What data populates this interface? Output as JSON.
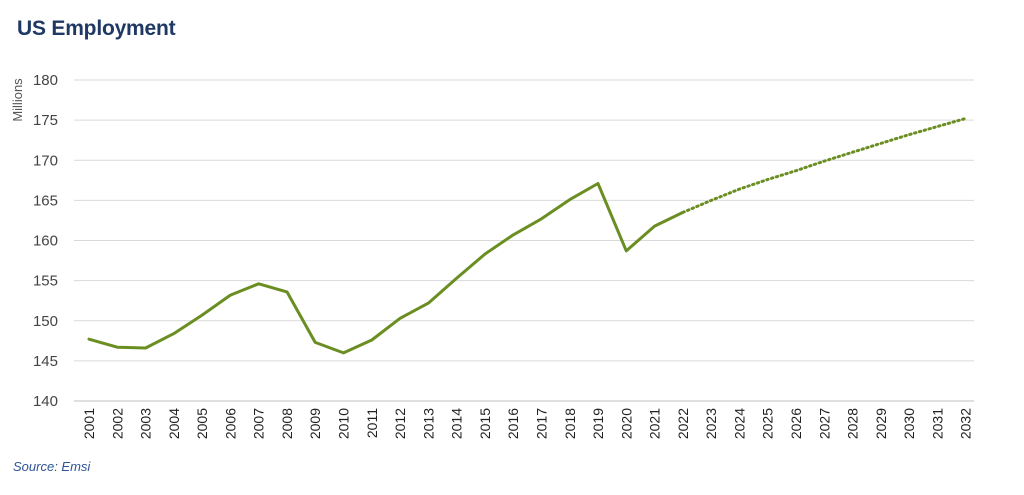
{
  "title": "US Employment",
  "source": "Source: Emsi",
  "chart_data": {
    "type": "line",
    "ylabel": "Millions",
    "xlabel": "",
    "ylim": [
      140,
      180
    ],
    "yticks": [
      140,
      145,
      150,
      155,
      160,
      165,
      170,
      175,
      180
    ],
    "grid": true,
    "x": [
      "2001",
      "2002",
      "2003",
      "2004",
      "2005",
      "2006",
      "2007",
      "2008",
      "2009",
      "2010",
      "2011",
      "2012",
      "2013",
      "2014",
      "2015",
      "2016",
      "2017",
      "2018",
      "2019",
      "2020",
      "2021",
      "2022",
      "2023",
      "2024",
      "2025",
      "2026",
      "2027",
      "2028",
      "2029",
      "2030",
      "2031",
      "2032"
    ],
    "series": [
      {
        "style": "solid",
        "color": "#6b8e23",
        "x": [
          "2001",
          "2002",
          "2003",
          "2004",
          "2005",
          "2006",
          "2007",
          "2008",
          "2009",
          "2010",
          "2011",
          "2012",
          "2013",
          "2014",
          "2015",
          "2016",
          "2017",
          "2018",
          "2019",
          "2020",
          "2021",
          "2022"
        ],
        "values": [
          147.7,
          146.7,
          146.6,
          148.4,
          150.7,
          153.2,
          154.6,
          153.6,
          147.3,
          146.0,
          147.6,
          150.3,
          152.2,
          155.3,
          158.3,
          160.7,
          162.7,
          165.1,
          167.1,
          158.7,
          161.8,
          163.5
        ]
      },
      {
        "style": "dotted",
        "color": "#6b8e23",
        "x": [
          "2022",
          "2023",
          "2024",
          "2025",
          "2026",
          "2027",
          "2028",
          "2029",
          "2030",
          "2031",
          "2032"
        ],
        "values": [
          163.5,
          165.0,
          166.4,
          167.6,
          168.7,
          169.9,
          171.0,
          172.1,
          173.2,
          174.2,
          175.2
        ]
      }
    ]
  }
}
